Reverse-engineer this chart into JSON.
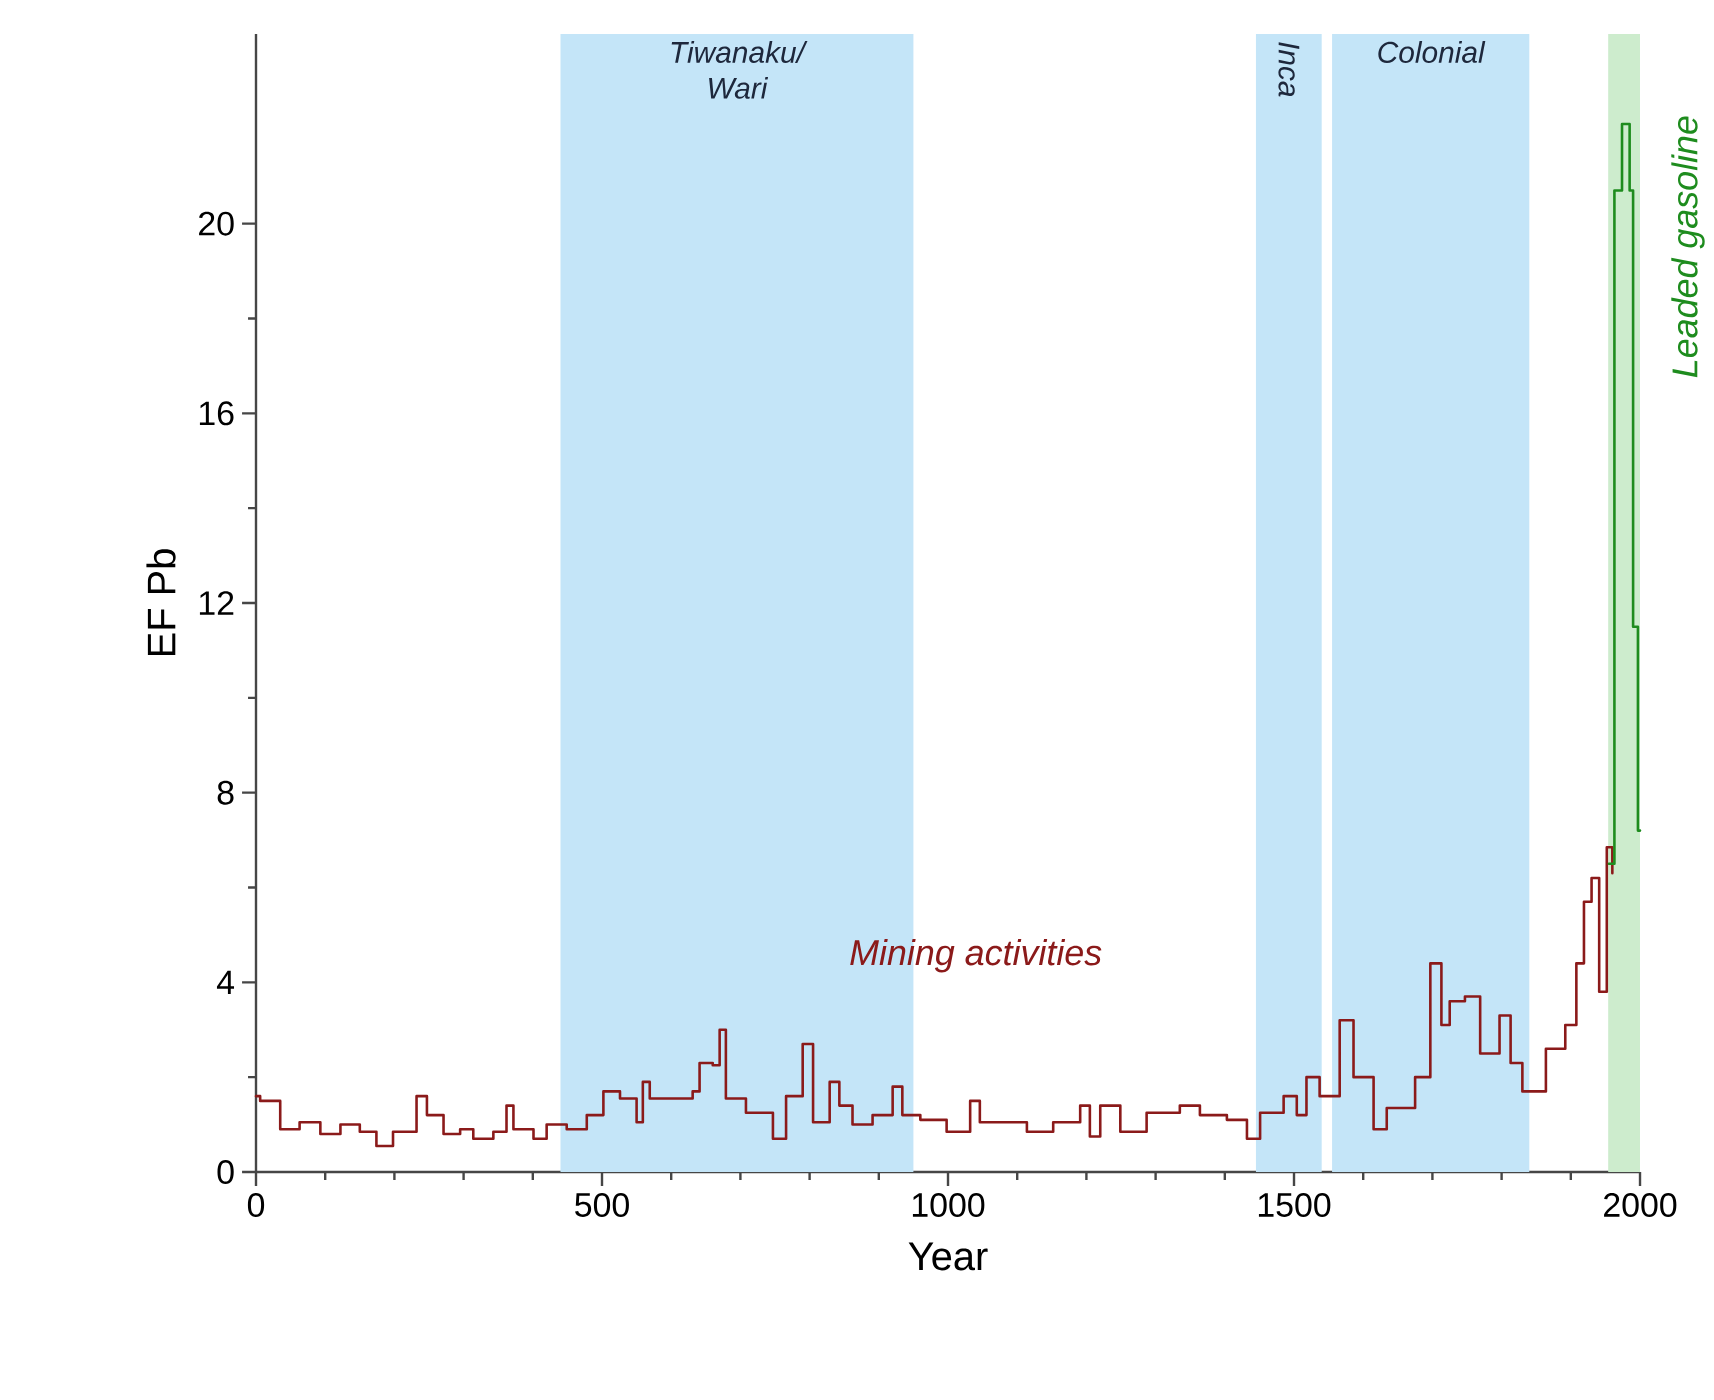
{
  "chart_data": {
    "type": "step",
    "xlabel": "Year",
    "ylabel": "EF Pb",
    "xlim": [
      0,
      2000
    ],
    "ylim": [
      0,
      24
    ],
    "xticks": [
      0,
      500,
      1000,
      1500,
      2000
    ],
    "yticks": [
      0,
      4,
      8,
      12,
      16,
      20
    ],
    "grid": false,
    "marker": "none",
    "line_style": "solid",
    "bands": [
      {
        "axis": "x",
        "from": 440,
        "to": 950,
        "label": "Tiwanaku/ Wari",
        "color": "#c4e5f8"
      },
      {
        "axis": "x",
        "from": 1445,
        "to": 1540,
        "label": "Inca",
        "color": "#c4e5f8"
      },
      {
        "axis": "x",
        "from": 1555,
        "to": 1840,
        "label": "Colonial",
        "color": "#c4e5f8"
      },
      {
        "axis": "x",
        "from": 1954,
        "to": 2000,
        "color": "#cdeccd"
      }
    ],
    "series": [
      {
        "name": "Mining activities",
        "color": "#8b1a1a",
        "x": [
          0,
          6,
          35,
          63,
          93,
          122,
          150,
          174,
          198,
          232,
          247,
          271,
          295,
          314,
          343,
          362,
          372,
          401,
          420,
          449,
          478,
          502,
          526,
          550,
          559,
          569,
          631,
          641,
          660,
          670,
          679,
          708,
          747,
          766,
          790,
          805,
          829,
          843,
          862,
          891,
          920,
          934,
          960,
          998,
          1032,
          1046,
          1085,
          1114,
          1152,
          1191,
          1205,
          1220,
          1249,
          1287,
          1335,
          1364,
          1403,
          1432,
          1451,
          1485,
          1504,
          1518,
          1537,
          1566,
          1586,
          1615,
          1634,
          1647,
          1675,
          1697,
          1713,
          1725,
          1747,
          1769,
          1797,
          1813,
          1830,
          1864,
          1892,
          1908,
          1919,
          1930,
          1941,
          1952,
          1960
        ],
        "values": [
          1.6,
          1.5,
          0.9,
          1.05,
          0.8,
          1.0,
          0.85,
          0.55,
          0.85,
          1.6,
          1.2,
          0.8,
          0.9,
          0.7,
          0.85,
          1.4,
          0.9,
          0.7,
          1.0,
          0.9,
          1.2,
          1.7,
          1.55,
          1.05,
          1.9,
          1.55,
          1.7,
          2.3,
          2.25,
          3.0,
          1.55,
          1.25,
          0.7,
          1.6,
          2.7,
          1.05,
          1.9,
          1.4,
          1.0,
          1.2,
          1.8,
          1.2,
          1.1,
          0.85,
          1.5,
          1.05,
          1.05,
          0.85,
          1.05,
          1.4,
          0.75,
          1.4,
          0.85,
          1.25,
          1.4,
          1.2,
          1.1,
          0.7,
          1.25,
          1.6,
          1.2,
          2.0,
          1.6,
          3.2,
          2.0,
          0.9,
          1.35,
          1.35,
          2.0,
          4.4,
          3.1,
          3.6,
          3.7,
          2.5,
          3.3,
          2.3,
          1.7,
          2.6,
          3.1,
          4.4,
          5.7,
          6.2,
          3.8,
          6.85,
          6.3
        ]
      },
      {
        "name": "Leaded gasoline",
        "color": "#1e8c1e",
        "x": [
          1955,
          1963,
          1974,
          1985,
          1990,
          1997,
          2000
        ],
        "values": [
          6.5,
          20.7,
          22.1,
          20.7,
          11.5,
          7.2,
          7.2
        ]
      }
    ]
  }
}
